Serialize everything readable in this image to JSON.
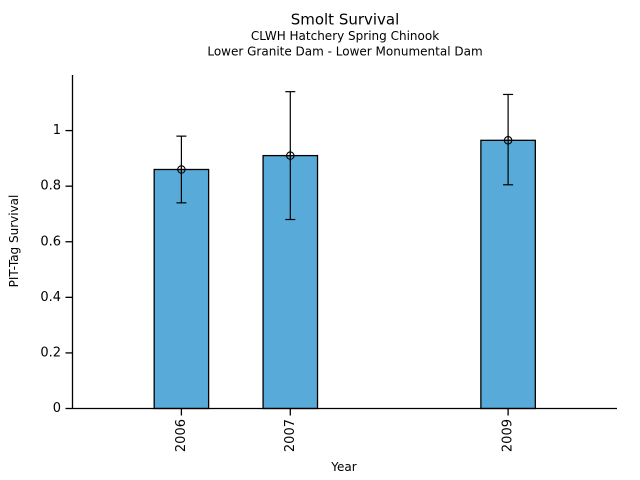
{
  "colors": {
    "bar_fill": "#58ABD8",
    "bar_edge": "#000000",
    "axis": "#000000",
    "text": "#000000",
    "background": "#FFFFFF"
  },
  "chart_data": {
    "type": "bar",
    "title": "Smolt Survival",
    "subtitle1": "CLWH Hatchery Spring Chinook",
    "subtitle2": "Lower Granite Dam - Lower Monumental Dam",
    "xlabel": "Year",
    "ylabel": "PIT-Tag Survival",
    "categories": [
      2006,
      2007,
      2009
    ],
    "category_labels": [
      "2006",
      "2007",
      "2009"
    ],
    "values": [
      0.86,
      0.91,
      0.965
    ],
    "error_low": [
      0.74,
      0.68,
      0.805
    ],
    "error_high": [
      0.98,
      1.14,
      1.13
    ],
    "xlim": [
      2005,
      2010
    ],
    "ylim": [
      0,
      1.2
    ],
    "yticks": [
      0,
      0.2,
      0.4,
      0.6,
      0.8,
      1
    ],
    "ytick_labels": [
      "0",
      "0.2",
      "0.4",
      "0.6",
      "0.8",
      "1"
    ],
    "bar_width_years": 0.5,
    "grid": false,
    "legend": "none",
    "marker": "circle-cross",
    "error_bar_caps": true,
    "xtick_label_rotation_deg": -90
  }
}
